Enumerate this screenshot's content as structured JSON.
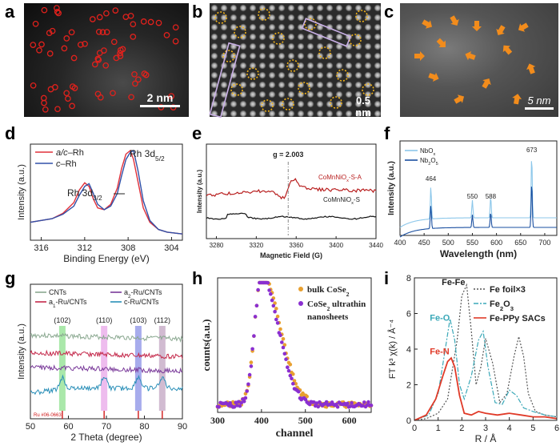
{
  "panels": {
    "a": {
      "label": "a",
      "scale_bar": "2 nm"
    },
    "b": {
      "label": "b",
      "scale_bar": "0.5 nm"
    },
    "c": {
      "label": "c",
      "scale_bar": "5 nm"
    },
    "d": {
      "label": "d"
    },
    "e": {
      "label": "e"
    },
    "f": {
      "label": "f"
    },
    "g": {
      "label": "g"
    },
    "h": {
      "label": "h"
    },
    "i": {
      "label": "i"
    }
  },
  "chart_data": [
    {
      "panel": "d",
      "type": "line",
      "xlabel": "Binding Energy (eV)",
      "ylabel": "Intensity (a.u.)",
      "xticks": [
        "316",
        "312",
        "308",
        "304"
      ],
      "xlim": [
        317,
        303
      ],
      "x_reversed": true,
      "legend": [
        "a/c–Rh",
        "c–Rh"
      ],
      "annotations": [
        "Rh 3d5/2",
        "Rh 3d3/2"
      ],
      "series": [
        {
          "name": "a/c–Rh",
          "color": "#e0303a",
          "x": [
            317,
            315,
            314,
            313,
            312.5,
            312,
            311.6,
            311.2,
            310.8,
            310.2,
            309.6,
            309,
            308.6,
            308.2,
            307.8,
            307.5,
            307,
            306.6,
            306,
            305.2,
            304.4,
            303
          ],
          "y": [
            0.2,
            0.24,
            0.3,
            0.42,
            0.56,
            0.64,
            0.6,
            0.46,
            0.36,
            0.34,
            0.4,
            0.58,
            0.8,
            0.96,
            1.0,
            0.9,
            0.6,
            0.36,
            0.2,
            0.12,
            0.09,
            0.07
          ]
        },
        {
          "name": "c–Rh",
          "color": "#3050a8",
          "x": [
            317,
            315,
            314,
            313,
            312.5,
            312,
            311.6,
            311.2,
            310.8,
            310.2,
            309.6,
            309,
            308.6,
            308.2,
            307.8,
            307.5,
            307.1,
            306.6,
            306,
            305.2,
            304.4,
            303
          ],
          "y": [
            0.2,
            0.24,
            0.29,
            0.38,
            0.5,
            0.6,
            0.63,
            0.52,
            0.4,
            0.34,
            0.38,
            0.52,
            0.72,
            0.9,
            0.98,
            1.0,
            0.78,
            0.44,
            0.22,
            0.12,
            0.09,
            0.07
          ]
        }
      ]
    },
    {
      "panel": "e",
      "type": "line",
      "xlabel": "Magnetic Field (G)",
      "ylabel": "Intensity (a.u.)",
      "xticks": [
        "3280",
        "3320",
        "3360",
        "3400",
        "3440"
      ],
      "xlim": [
        3270,
        3440
      ],
      "annotations": [
        "g = 2.003"
      ],
      "series": [
        {
          "name": "CoMnNiOx-S-A",
          "color": "#b81e1e"
        },
        {
          "name": "CoMnNiOx-S",
          "color": "#111111"
        }
      ]
    },
    {
      "panel": "f",
      "type": "line",
      "xlabel": "Wavelength (nm)",
      "ylabel": "Intensity (a.u.)",
      "xticks": [
        "400",
        "450",
        "500",
        "550",
        "600",
        "650",
        "700"
      ],
      "xlim": [
        400,
        725
      ],
      "annotations": [
        "464",
        "550",
        "588",
        "673"
      ],
      "series": [
        {
          "name": "NbOx",
          "color": "#8cc7ea"
        },
        {
          "name": "Nb2O5",
          "color": "#1a4fa0"
        }
      ],
      "peaks": [
        464,
        550,
        588,
        673
      ]
    },
    {
      "panel": "g",
      "type": "line",
      "xlabel": "2 Theta (degree)",
      "ylabel": "Intensity (a.u.)",
      "xticks": [
        "50",
        "60",
        "70",
        "80",
        "90"
      ],
      "xlim": [
        50,
        90
      ],
      "reference": "Ru #06-0663",
      "planes": [
        {
          "label": "(102)",
          "x": 58.4
        },
        {
          "label": "(110)",
          "x": 69.4
        },
        {
          "label": "(103)",
          "x": 78.4
        },
        {
          "label": "(112)",
          "x": 84.7
        }
      ],
      "series": [
        {
          "name": "CNTs",
          "color": "#8aa890"
        },
        {
          "name": "a1-Ru/CNTs",
          "color": "#c4284a"
        },
        {
          "name": "a2-Ru/CNTs",
          "color": "#7a3a9a"
        },
        {
          "name": "c-Ru/CNTs",
          "color": "#2a8fb8"
        }
      ]
    },
    {
      "panel": "h",
      "type": "scatter",
      "xlabel": "channel",
      "ylabel": "counts(a.u.)",
      "xticks": [
        "300",
        "400",
        "500",
        "600"
      ],
      "xlim": [
        300,
        650
      ],
      "series": [
        {
          "name": "bulk CoSe2",
          "color": "#e8a030"
        },
        {
          "name": "CoSe2 ultrathin nanosheets",
          "color": "#8a2fd0"
        }
      ]
    },
    {
      "panel": "i",
      "type": "line",
      "xlabel": "R / Å",
      "ylabel": "FT k³ χ(k) / Å⁻⁴",
      "xticks": [
        "0",
        "1",
        "2",
        "3",
        "4",
        "5",
        "6"
      ],
      "yticks": [
        "0",
        "2",
        "4",
        "6",
        "8"
      ],
      "xlim": [
        0,
        6
      ],
      "ylim": [
        0,
        8
      ],
      "annotations": [
        "Fe-Fe",
        "Fe-O",
        "Fe-N"
      ],
      "series": [
        {
          "name": "Fe foil×3",
          "color": "#555555",
          "x": [
            0,
            0.5,
            1,
            1.4,
            1.8,
            2.0,
            2.2,
            2.4,
            2.6,
            2.8,
            3.0,
            3.3,
            3.6,
            3.9,
            4.2,
            4.4,
            4.6,
            4.8,
            5.1,
            5.5,
            6
          ],
          "y": [
            0,
            0.1,
            0.4,
            1.2,
            4.5,
            7.0,
            7.6,
            5.0,
            2.0,
            3.0,
            4.6,
            3.2,
            1.0,
            1.5,
            3.6,
            4.7,
            3.6,
            1.5,
            0.5,
            0.3,
            0.2
          ]
        },
        {
          "name": "Fe2O3",
          "color": "#3aa8b8",
          "x": [
            0,
            0.6,
            1.0,
            1.3,
            1.5,
            1.7,
            1.9,
            2.1,
            2.4,
            2.7,
            2.9,
            3.1,
            3.4,
            3.7,
            4.0,
            4.3,
            4.6,
            5,
            5.5,
            6
          ],
          "y": [
            0,
            0.3,
            1.5,
            4.0,
            5.7,
            4.5,
            2.0,
            1.2,
            2.5,
            4.5,
            5.0,
            3.0,
            1.0,
            0.9,
            1.7,
            1.4,
            0.7,
            0.5,
            0.3,
            0.2
          ]
        },
        {
          "name": "Fe-PPy SACs",
          "color": "#e03a28",
          "x": [
            0,
            0.5,
            0.9,
            1.2,
            1.4,
            1.55,
            1.7,
            1.9,
            2.1,
            2.4,
            2.7,
            3,
            3.5,
            4,
            4.5,
            5,
            5.5,
            6
          ],
          "y": [
            0,
            0.3,
            1.2,
            2.5,
            3.3,
            3.5,
            3.0,
            1.4,
            0.4,
            0.3,
            0.5,
            0.4,
            0.3,
            0.4,
            0.3,
            0.2,
            0.2,
            0.1
          ]
        }
      ]
    }
  ]
}
